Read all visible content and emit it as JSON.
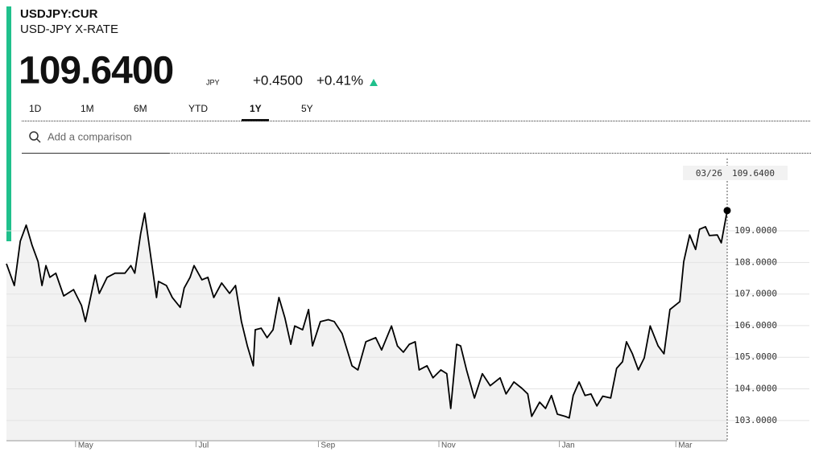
{
  "header": {
    "symbol": "USDJPY:CUR",
    "name": "USD-JPY X-RATE",
    "price": "109.6400",
    "currency": "JPY",
    "change": "+0.4500",
    "change_pct": "+0.41%"
  },
  "tabs": [
    "1D",
    "1M",
    "6M",
    "YTD",
    "1Y",
    "5Y"
  ],
  "active_tab": 4,
  "search": {
    "placeholder": "Add a comparison"
  },
  "chart_data": {
    "type": "line",
    "x": [
      0,
      4,
      7,
      10,
      13,
      16,
      18,
      20,
      22,
      25,
      29,
      34,
      38,
      40,
      45,
      47,
      51,
      55,
      60,
      63,
      65,
      68,
      70,
      72,
      76,
      77,
      81,
      84,
      88,
      90,
      93,
      95,
      99,
      102,
      105,
      109,
      113,
      116,
      119,
      122,
      125,
      126,
      129,
      132,
      135,
      138,
      141,
      144,
      146,
      150,
      153,
      155,
      159,
      163,
      166,
      170,
      175,
      178,
      182,
      187,
      190,
      195,
      198,
      201,
      204,
      207,
      209,
      213,
      216,
      220,
      223,
      225,
      228,
      230,
      233,
      237,
      241,
      245,
      250,
      253,
      257,
      261,
      264,
      266,
      270,
      273,
      276,
      279,
      283,
      285,
      287,
      290,
      293,
      296,
      299,
      302,
      306,
      309,
      312,
      314,
      317,
      320,
      323,
      326,
      330,
      333,
      336,
      341,
      343,
      346,
      349,
      351,
      354,
      356,
      360,
      362,
      365
    ],
    "series": [
      {
        "name": "USDJPY",
        "color": "#000000",
        "values": [
          107.96,
          107.27,
          108.67,
          109.18,
          108.54,
          108.03,
          107.27,
          107.9,
          107.53,
          107.66,
          106.94,
          107.14,
          106.64,
          106.13,
          107.6,
          107.02,
          107.53,
          107.66,
          107.66,
          107.9,
          107.66,
          108.92,
          109.56,
          108.67,
          106.89,
          107.4,
          107.27,
          106.89,
          106.58,
          107.19,
          107.53,
          107.9,
          107.45,
          107.53,
          106.89,
          107.35,
          107.02,
          107.27,
          106.13,
          105.36,
          104.73,
          105.87,
          105.92,
          105.62,
          105.87,
          106.89,
          106.25,
          105.41,
          105.99,
          105.87,
          106.51,
          105.36,
          106.13,
          106.19,
          106.13,
          105.75,
          104.73,
          104.6,
          105.49,
          105.62,
          105.23,
          105.99,
          105.36,
          105.16,
          105.41,
          105.49,
          104.6,
          104.73,
          104.35,
          104.6,
          104.48,
          103.38,
          105.41,
          105.36,
          104.6,
          103.71,
          104.48,
          104.1,
          104.35,
          103.84,
          104.22,
          104.02,
          103.84,
          103.13,
          103.58,
          103.38,
          103.79,
          103.2,
          103.13,
          103.08,
          103.79,
          104.22,
          103.79,
          103.84,
          103.46,
          103.77,
          103.71,
          104.65,
          104.86,
          105.49,
          105.11,
          104.6,
          104.98,
          105.99,
          105.36,
          105.11,
          106.51,
          106.76,
          108.03,
          108.87,
          108.41,
          109.05,
          109.13,
          108.85,
          108.87,
          108.62,
          109.64
        ]
      }
    ],
    "xlim": [
      0,
      365
    ],
    "xticks": [
      {
        "value": 35,
        "label": "May"
      },
      {
        "value": 96,
        "label": "Jul"
      },
      {
        "value": 158,
        "label": "Sep"
      },
      {
        "value": 219,
        "label": "Nov"
      },
      {
        "value": 280,
        "label": "Jan"
      },
      {
        "value": 339,
        "label": "Mar"
      }
    ],
    "ylim": [
      102.36,
      111.29
    ],
    "yticks": [
      {
        "value": 103,
        "label": "103.0000"
      },
      {
        "value": 104,
        "label": "104.0000"
      },
      {
        "value": 105,
        "label": "105.0000"
      },
      {
        "value": 106,
        "label": "106.0000"
      },
      {
        "value": 107,
        "label": "107.0000"
      },
      {
        "value": 108,
        "label": "108.0000"
      },
      {
        "value": 109,
        "label": "109.0000"
      }
    ],
    "grid": true,
    "fill": "#f2f2f2",
    "tooltip": {
      "date": "03/26",
      "value_label": "109.6400"
    }
  }
}
